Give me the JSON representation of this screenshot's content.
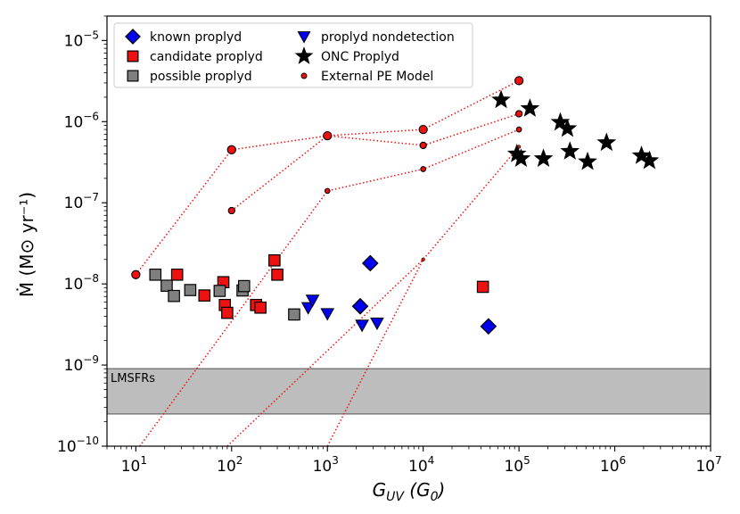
{
  "chart_data": {
    "type": "scatter",
    "xlabel": "G_UV (G_0)",
    "ylabel": "Ṁ (M⊙ yr⁻¹)",
    "xscale": "log",
    "yscale": "log",
    "xlim": [
      5,
      10000000
    ],
    "ylim": [
      1e-10,
      2e-05
    ],
    "x_ticks": [
      10,
      100,
      1000,
      10000,
      100000,
      1000000,
      10000000
    ],
    "x_tick_labels": [
      {
        "base": "10",
        "exp": "1"
      },
      {
        "base": "10",
        "exp": "2"
      },
      {
        "base": "10",
        "exp": "3"
      },
      {
        "base": "10",
        "exp": "4"
      },
      {
        "base": "10",
        "exp": "5"
      },
      {
        "base": "10",
        "exp": "6"
      },
      {
        "base": "10",
        "exp": "7"
      }
    ],
    "y_ticks": [
      1e-10,
      1e-09,
      1e-08,
      1e-07,
      1e-06,
      1e-05
    ],
    "y_tick_labels": [
      {
        "base": "10",
        "exp": "−10"
      },
      {
        "base": "10",
        "exp": "−9"
      },
      {
        "base": "10",
        "exp": "−8"
      },
      {
        "base": "10",
        "exp": "−7"
      },
      {
        "base": "10",
        "exp": "−6"
      },
      {
        "base": "10",
        "exp": "−5"
      }
    ],
    "band": {
      "label": "LMSFRs",
      "ymin": 2.5e-10,
      "ymax": 9e-10,
      "color": "#bdbdbd"
    },
    "legend": {
      "placement": "top-left",
      "entries": [
        {
          "label": "known proplyd",
          "marker": "diamond",
          "color": "#0000ee"
        },
        {
          "label": "candidate proplyd",
          "marker": "square",
          "color": "#ee1111"
        },
        {
          "label": "possible proplyd",
          "marker": "square",
          "color": "#7f7f7f"
        },
        {
          "label": "proplyd nondetection",
          "marker": "triangle-down",
          "color": "#0000ee"
        },
        {
          "label": "ONC Proplyd",
          "marker": "star",
          "color": "#000000"
        },
        {
          "label": "External PE Model",
          "marker": "circle",
          "color": "#ee1111"
        }
      ]
    },
    "series": [
      {
        "name": "known proplyd",
        "marker": "diamond",
        "color": "#0000ee",
        "points": [
          [
            2800,
            1.8e-08
          ],
          [
            2200,
            5.3e-09
          ],
          [
            48000,
            3e-09
          ]
        ]
      },
      {
        "name": "candidate proplyd",
        "marker": "square",
        "color": "#ee1111",
        "points": [
          [
            27,
            1.3e-08
          ],
          [
            52,
            7.2e-09
          ],
          [
            82,
            1.05e-08
          ],
          [
            85,
            5.5e-09
          ],
          [
            90,
            4.4e-09
          ],
          [
            180,
            5.5e-09
          ],
          [
            200,
            5.1e-09
          ],
          [
            280,
            1.95e-08
          ],
          [
            300,
            1.3e-08
          ],
          [
            42000,
            9.2e-09
          ]
        ]
      },
      {
        "name": "possible proplyd",
        "marker": "square",
        "color": "#7f7f7f",
        "points": [
          [
            16,
            1.3e-08
          ],
          [
            21,
            9.5e-09
          ],
          [
            25,
            7.1e-09
          ],
          [
            37,
            8.4e-09
          ],
          [
            75,
            8.2e-09
          ],
          [
            130,
            8.3e-09
          ],
          [
            135,
            9.4e-09
          ],
          [
            450,
            4.2e-09
          ]
        ]
      },
      {
        "name": "proplyd nondetection",
        "marker": "triangle-down",
        "color": "#0000ee",
        "points": [
          [
            630,
            5.1e-09
          ],
          [
            700,
            6.3e-09
          ],
          [
            1000,
            4.3e-09
          ],
          [
            2300,
            3.1e-09
          ],
          [
            3300,
            3.3e-09
          ]
        ]
      },
      {
        "name": "ONC Proplyd",
        "marker": "star",
        "color": "#000000",
        "points": [
          [
            65000,
            1.85e-06
          ],
          [
            130000,
            1.45e-06
          ],
          [
            270000,
            9.8e-07
          ],
          [
            320000,
            8.2e-07
          ],
          [
            95000,
            4e-07
          ],
          [
            105000,
            3.5e-07
          ],
          [
            180000,
            3.5e-07
          ],
          [
            340000,
            4.3e-07
          ],
          [
            520000,
            3.2e-07
          ],
          [
            820000,
            5.5e-07
          ],
          [
            1900000,
            3.8e-07
          ],
          [
            2300000,
            3.3e-07
          ]
        ]
      }
    ],
    "model_tracks": [
      {
        "points": [
          [
            10,
            1.3e-08
          ],
          [
            100,
            4.5e-07
          ],
          [
            1000,
            6.7e-07
          ],
          [
            10000,
            8e-07
          ],
          [
            100000,
            3.2e-06
          ]
        ]
      },
      {
        "points": [
          [
            100,
            8e-08
          ],
          [
            1000,
            6.7e-07
          ],
          [
            10000,
            5.1e-07
          ],
          [
            100000,
            1.25e-06
          ]
        ]
      },
      {
        "points": [
          [
            11,
            1e-10
          ],
          [
            1000,
            1.4e-07
          ],
          [
            10000,
            2.6e-07
          ],
          [
            100000,
            8e-07
          ]
        ]
      },
      {
        "points": [
          [
            90,
            1e-10
          ],
          [
            10000,
            2e-08
          ],
          [
            100000,
            4.9e-07
          ]
        ]
      },
      {
        "points": [
          [
            1000,
            1e-10
          ],
          [
            10000,
            2e-08
          ]
        ]
      }
    ],
    "model_points": [
      {
        "x": 10,
        "y": 1.3e-08,
        "size": "large"
      },
      {
        "x": 100,
        "y": 4.5e-07,
        "size": "large"
      },
      {
        "x": 1000,
        "y": 6.7e-07,
        "size": "large"
      },
      {
        "x": 10000,
        "y": 8e-07,
        "size": "large"
      },
      {
        "x": 100000,
        "y": 3.2e-06,
        "size": "large"
      },
      {
        "x": 100,
        "y": 8e-08,
        "size": "medium"
      },
      {
        "x": 10000,
        "y": 5.1e-07,
        "size": "medium"
      },
      {
        "x": 100000,
        "y": 1.25e-06,
        "size": "medium"
      },
      {
        "x": 1000,
        "y": 1.4e-07,
        "size": "small"
      },
      {
        "x": 10000,
        "y": 2.6e-07,
        "size": "small"
      },
      {
        "x": 100000,
        "y": 8e-07,
        "size": "small"
      },
      {
        "x": 10000,
        "y": 2e-08,
        "size": "tiny"
      },
      {
        "x": 100000,
        "y": 4.9e-07,
        "size": "tiny"
      }
    ]
  }
}
